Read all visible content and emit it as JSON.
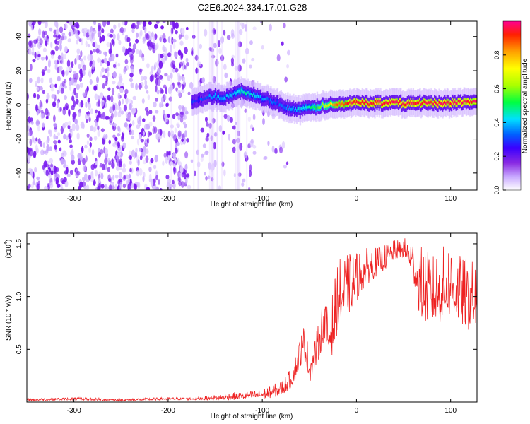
{
  "figure": {
    "title": "C2E6.2024.334.17.01.G28"
  },
  "chart_data": [
    {
      "type": "heatmap",
      "xlabel": "Height of straight line (km)",
      "ylabel": "Frequency (Hz)",
      "xlim": [
        -350,
        128
      ],
      "ylim": [
        -50,
        49
      ],
      "x_ticks": [
        -300,
        -200,
        -100,
        0,
        100
      ],
      "y_ticks": [
        -40,
        -20,
        0,
        20,
        40
      ],
      "colorbar": {
        "label": "Normalized spectral amplitude",
        "range": [
          0,
          1
        ],
        "ticks": [
          0.0,
          0.2,
          0.4,
          0.6,
          0.8
        ],
        "tick_labels": [
          "0.0",
          "0.2",
          "0.4",
          "0.6",
          "0.8"
        ],
        "colormap": [
          "#ffffff",
          "#c8a8ff",
          "#8a2be2",
          "#3a00ff",
          "#0060ff",
          "#00e0ff",
          "#00ff40",
          "#aaff00",
          "#ffff00",
          "#ffa000",
          "#ff2000",
          "#ff0090"
        ]
      },
      "noise_region": {
        "x_range": [
          -350,
          -110
        ],
        "amplitude": "0.0-0.2",
        "color": "#7a1cf0"
      },
      "signal_track": {
        "x": [
          -175,
          -160,
          -150,
          -140,
          -130,
          -120,
          -110,
          -100,
          -90,
          -80,
          -70,
          -60,
          -50,
          -40,
          -30,
          -20,
          -10,
          0,
          20,
          40,
          60,
          80,
          100,
          128
        ],
        "frequency": [
          2,
          4,
          5,
          4,
          6,
          8,
          6,
          4,
          2,
          0,
          -2,
          -3,
          -2,
          -1,
          0,
          0,
          1,
          1,
          1,
          1,
          1,
          1,
          1,
          2
        ],
        "amplitude": [
          0.3,
          0.35,
          0.4,
          0.42,
          0.45,
          0.5,
          0.45,
          0.4,
          0.35,
          0.35,
          0.4,
          0.45,
          0.5,
          0.6,
          0.7,
          0.85,
          0.9,
          0.95,
          0.95,
          0.95,
          0.95,
          0.95,
          0.95,
          0.95
        ]
      }
    },
    {
      "type": "line",
      "xlabel": "Height of straight line (km)",
      "ylabel": "SNR (10 * v/v)",
      "scale_label": "(x10",
      "scale_exp": "4",
      "scale_close": ")",
      "xlim": [
        -350,
        128
      ],
      "ylim": [
        0,
        1.6
      ],
      "x_ticks": [
        -300,
        -200,
        -100,
        0,
        100
      ],
      "y_ticks": [
        0.5,
        1.0,
        1.5
      ],
      "y_tick_labels": [
        "0.5",
        "1.0",
        "1.5"
      ],
      "series": [
        {
          "color": "#ee2222",
          "x": [
            -350,
            -300,
            -250,
            -200,
            -170,
            -150,
            -130,
            -110,
            -100,
            -90,
            -80,
            -70,
            -65,
            -60,
            -55,
            -50,
            -45,
            -40,
            -35,
            -30,
            -25,
            -20,
            -10,
            0,
            10,
            20,
            30,
            40,
            50,
            55,
            60,
            65,
            70,
            80,
            90,
            100,
            110,
            120,
            128
          ],
          "y": [
            0.02,
            0.03,
            0.02,
            0.03,
            0.03,
            0.04,
            0.05,
            0.06,
            0.07,
            0.09,
            0.12,
            0.2,
            0.3,
            0.45,
            0.55,
            0.3,
            0.4,
            0.55,
            0.75,
            0.6,
            0.7,
            0.95,
            1.05,
            1.15,
            1.25,
            1.3,
            1.35,
            1.42,
            1.45,
            1.4,
            1.32,
            1.15,
            1.05,
            1.0,
            1.05,
            1.1,
            1.0,
            0.95,
            0.95
          ],
          "spread": [
            0.01,
            0.01,
            0.01,
            0.01,
            0.01,
            0.02,
            0.03,
            0.03,
            0.04,
            0.05,
            0.06,
            0.08,
            0.1,
            0.12,
            0.15,
            0.12,
            0.12,
            0.15,
            0.18,
            0.2,
            0.25,
            0.28,
            0.25,
            0.2,
            0.15,
            0.12,
            0.1,
            0.08,
            0.08,
            0.1,
            0.15,
            0.25,
            0.3,
            0.28,
            0.3,
            0.3,
            0.28,
            0.28,
            0.28
          ]
        }
      ]
    }
  ]
}
